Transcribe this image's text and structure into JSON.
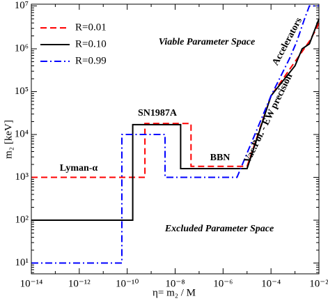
{
  "chart_data": {
    "type": "line",
    "xlabel": "η= m₂ / M",
    "ylabel": "m₂ [keV]",
    "log_x": true,
    "log_y": true,
    "xlim": [
      1e-14,
      0.01
    ],
    "ylim": [
      5.6,
      11000000.0
    ],
    "xticks": [
      {
        "value": 1e-14,
        "label": "10⁻¹⁴"
      },
      {
        "value": 1e-12,
        "label": "10⁻¹²"
      },
      {
        "value": 1e-10,
        "label": "10⁻¹⁰"
      },
      {
        "value": 1e-08,
        "label": "10⁻⁸"
      },
      {
        "value": 1e-06,
        "label": "10⁻⁶"
      },
      {
        "value": 0.0001,
        "label": "10⁻⁴"
      },
      {
        "value": 0.01,
        "label": "10⁻²"
      }
    ],
    "yticks": [
      {
        "value": 10,
        "label": "10¹"
      },
      {
        "value": 100,
        "label": "10²"
      },
      {
        "value": 1000,
        "label": "10³"
      },
      {
        "value": 10000,
        "label": "10⁴"
      },
      {
        "value": 100000,
        "label": "10⁵"
      },
      {
        "value": 1000000,
        "label": "10⁶"
      },
      {
        "value": 10000000,
        "label": "10⁷"
      }
    ],
    "legend": "upper left",
    "series": [
      {
        "name": "R=0.01",
        "color": "#ff0000",
        "dash": "dashed",
        "x": [
          1e-14,
          5.5e-10,
          5.5e-10,
          4.6e-08,
          4.6e-08,
          1e-05,
          0.0001,
          0.001,
          0.004,
          0.008,
          0.01
        ],
        "values": [
          1000,
          1000,
          18000,
          18000,
          1800,
          1800,
          80000,
          500000,
          1500000,
          3000000,
          4000000
        ]
      },
      {
        "name": "R=0.10",
        "color": "#000000",
        "dash": "solid",
        "x": [
          1e-14,
          1.7e-10,
          1.7e-10,
          1.7e-08,
          1.7e-08,
          1e-05,
          0.0001,
          0.001,
          0.002,
          0.004,
          0.01
        ],
        "values": [
          100,
          100,
          17000,
          17000,
          1600,
          1600,
          80000,
          400000,
          1000000,
          1300000,
          5000000
        ]
      },
      {
        "name": "R=0.99",
        "color": "#0000ff",
        "dash": "dashdot",
        "x": [
          1e-14,
          6e-11,
          6e-11,
          3.8e-09,
          3.8e-09,
          3.8e-06,
          0.0001,
          0.0006,
          0.0012,
          0.0025,
          0.004,
          0.01
        ],
        "values": [
          10,
          10,
          10000,
          10000,
          1000,
          1000,
          80000,
          600000,
          1500000,
          5000000,
          10000000,
          10000000
        ]
      }
    ],
    "annotations": [
      {
        "text": "Viable Parameter Space",
        "color": "#228b22"
      },
      {
        "text": "Excluded Parameter Space",
        "color": "#ff0000"
      },
      {
        "text": "SN1987A",
        "color": "#000000"
      },
      {
        "text": "BBN",
        "color": "#000000"
      },
      {
        "text": "Lyman-α",
        "color": "#000000"
      },
      {
        "text": "Accelerators",
        "color": "#000000"
      },
      {
        "text": "Vac.Pol. - EW precision",
        "color": "#000000"
      }
    ]
  }
}
